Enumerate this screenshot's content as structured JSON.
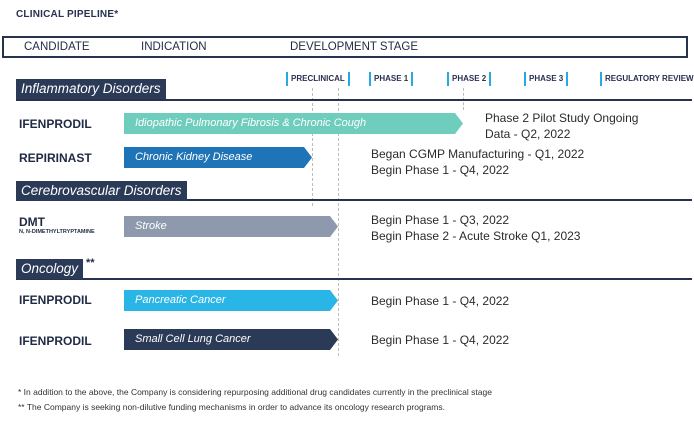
{
  "title": "CLINICAL PIPELINE*",
  "header": {
    "candidate": "CANDIDATE",
    "indication": "INDICATION",
    "development_stage": "DEVELOPMENT STAGE"
  },
  "stages": [
    "PRECLINICAL",
    "PHASE 1",
    "PHASE 2",
    "PHASE 3",
    "REGULATORY REVIEW"
  ],
  "categories": {
    "inflammatory": "Inflammatory Disorders",
    "cerebrovascular": "Cerebrovascular Disorders",
    "oncology": "Oncology",
    "oncology_mark": "**"
  },
  "chart_data": {
    "type": "bar",
    "stage_axis": [
      "PRECLINICAL",
      "PHASE 1",
      "PHASE 2",
      "PHASE 3",
      "REGULATORY REVIEW"
    ],
    "programs": [
      {
        "category": "Inflammatory Disorders",
        "candidate": "IFENPRODIL",
        "subtitle": "",
        "indication": "Idiopathic Pulmonary Fibrosis & Chronic Cough",
        "stage_reached": "PHASE 2",
        "color": "#6fcdbe",
        "status": [
          "Phase 2 Pilot Study Ongoing",
          "Data - Q2, 2022"
        ]
      },
      {
        "category": "Inflammatory Disorders",
        "candidate": "REPIRINAST",
        "subtitle": "",
        "indication": "Chronic Kidney Disease",
        "stage_reached": "PRECLINICAL",
        "color": "#1e74b6",
        "status": [
          "Began CGMP Manufacturing - Q1, 2022",
          "Begin Phase 1 - Q4, 2022"
        ]
      },
      {
        "category": "Cerebrovascular Disorders",
        "candidate": "DMT",
        "subtitle": "N, N-DIMETHYLTRYPTAMINE",
        "indication": "Stroke",
        "stage_reached": "PRECLINICAL",
        "color": "#8e99ad",
        "status": [
          "Begin Phase 1 - Q3, 2022",
          "Begin Phase 2 - Acute Stroke Q1, 2023"
        ]
      },
      {
        "category": "Oncology",
        "candidate": "IFENPRODIL",
        "subtitle": "",
        "indication": "Pancreatic Cancer",
        "stage_reached": "PRECLINICAL",
        "color": "#29b6e6",
        "status": [
          "Begin Phase 1 -  Q4, 2022"
        ]
      },
      {
        "category": "Oncology",
        "candidate": "IFENPRODIL",
        "subtitle": "",
        "indication": "Small Cell Lung Cancer",
        "stage_reached": "PRECLINICAL",
        "color": "#2b3a57",
        "status": [
          "Begin Phase 1 - Q4, 2022"
        ]
      }
    ]
  },
  "footnotes": [
    "* In addition to the above, the Company is considering repurposing additional drug candidates currently in the preclinical stage",
    "** The Company is seeking non-dilutive funding mechanisms in order to advance its oncology research programs."
  ]
}
